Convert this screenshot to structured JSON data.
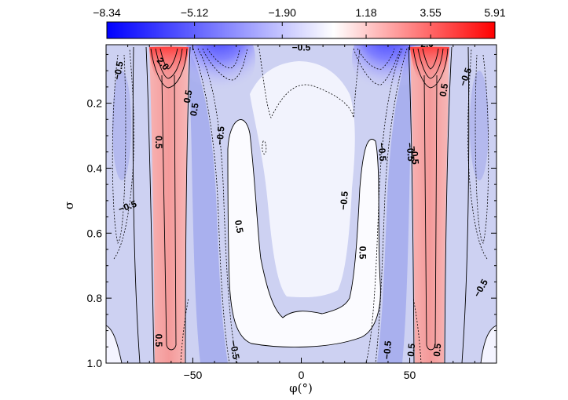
{
  "chart_data": {
    "type": "contour",
    "title": "",
    "xlabel": "φ(°)",
    "ylabel": "σ",
    "xlim": [
      -90,
      90
    ],
    "ylim": [
      1.0,
      0.02
    ],
    "xticks": [
      {
        "value": -50,
        "label": "−50"
      },
      {
        "value": 0,
        "label": "0"
      },
      {
        "value": 50,
        "label": "50"
      }
    ],
    "yticks": [
      {
        "value": 0.2,
        "label": "0.2"
      },
      {
        "value": 0.4,
        "label": "0.4"
      },
      {
        "value": 0.6,
        "label": "0.6"
      },
      {
        "value": 0.8,
        "label": "0.8"
      },
      {
        "value": 1.0,
        "label": "1.0"
      }
    ],
    "colorbar": {
      "min": -8.34,
      "max": 5.91,
      "colors": {
        "negative": "#0000ff",
        "zero": "#ffffff",
        "positive": "#ff0000"
      },
      "ticks": [
        {
          "value": -8.34,
          "label": "−8.34"
        },
        {
          "value": -5.12,
          "label": "−5.12"
        },
        {
          "value": -1.9,
          "label": "−1.90"
        },
        {
          "value": 1.18,
          "label": "1.18"
        },
        {
          "value": 3.55,
          "label": "3.55"
        },
        {
          "value": 5.91,
          "label": "5.91"
        }
      ]
    },
    "contour_labels": [
      {
        "text": "−0.5",
        "phi": -84,
        "sigma": 0.1,
        "angle": -80
      },
      {
        "text": "2.0",
        "phi": -64,
        "sigma": 0.08,
        "angle": 50
      },
      {
        "text": "0.5",
        "phi": -52,
        "sigma": 0.18,
        "angle": -80
      },
      {
        "text": "0.5",
        "phi": -49,
        "sigma": 0.22,
        "angle": -80
      },
      {
        "text": "0.5",
        "phi": -66,
        "sigma": 0.32,
        "angle": 90
      },
      {
        "text": "−0.5",
        "phi": -37,
        "sigma": 0.3,
        "angle": -85
      },
      {
        "text": "−0.5",
        "phi": -80,
        "sigma": 0.52,
        "angle": -20
      },
      {
        "text": "0.5",
        "phi": -29,
        "sigma": 0.58,
        "angle": 80
      },
      {
        "text": "0.5",
        "phi": -66,
        "sigma": 0.93,
        "angle": 90
      },
      {
        "text": "−0.5",
        "phi": -31,
        "sigma": 0.96,
        "angle": 80
      },
      {
        "text": "−0.5",
        "phi": 0,
        "sigma": 0.03,
        "angle": 0
      },
      {
        "text": "−0.5",
        "phi": 20,
        "sigma": 0.5,
        "angle": -85
      },
      {
        "text": "0.5",
        "phi": 28,
        "sigma": 0.66,
        "angle": 90
      },
      {
        "text": "−0.5",
        "phi": 37,
        "sigma": 0.35,
        "angle": 85
      },
      {
        "text": "−0.5",
        "phi": 50,
        "sigma": 0.35,
        "angle": 85
      },
      {
        "text": "−0.5",
        "phi": 52,
        "sigma": 0.36,
        "angle": 85
      },
      {
        "text": "2.0",
        "phi": 58,
        "sigma": 0.02,
        "angle": 0
      },
      {
        "text": "0.5",
        "phi": 66,
        "sigma": 0.16,
        "angle": -80
      },
      {
        "text": "−0.5",
        "phi": 76,
        "sigma": 0.12,
        "angle": -70
      },
      {
        "text": "−0.5",
        "phi": 83,
        "sigma": 0.77,
        "angle": -60
      },
      {
        "text": "−0.5",
        "phi": 40,
        "sigma": 0.96,
        "angle": -85
      },
      {
        "text": "0.5",
        "phi": 51,
        "sigma": 0.96,
        "angle": -85
      },
      {
        "text": "0.5",
        "phi": 63,
        "sigma": 0.96,
        "angle": -85
      }
    ]
  }
}
